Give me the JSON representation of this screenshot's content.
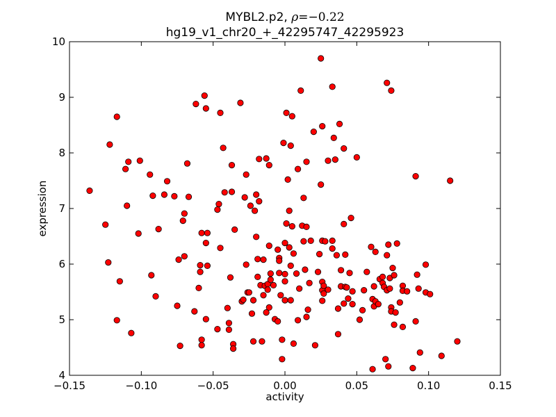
{
  "chart_data": {
    "type": "scatter",
    "title": "MYBL2.p2, ρ=−0.22",
    "title_line1_prefix": "MYBL2.p2, ",
    "title_line1_symbol": "ρ",
    "title_line1_equals": "=−0.22",
    "subtitle": "hg19_v1_chr20_+_42295747_42295923",
    "xlabel": "activity",
    "ylabel": "expression",
    "xlim": [
      -0.15,
      0.15
    ],
    "ylim": [
      4,
      10
    ],
    "xticks": [
      -0.15,
      -0.1,
      -0.05,
      0.0,
      0.05,
      0.1,
      0.15
    ],
    "xtick_labels": [
      "−0.15",
      "−0.10",
      "−0.05",
      "0.00",
      "0.05",
      "0.10",
      "0.15"
    ],
    "yticks": [
      4,
      5,
      6,
      7,
      8,
      9,
      10
    ],
    "ytick_labels": [
      "4",
      "5",
      "6",
      "7",
      "8",
      "9",
      "10"
    ],
    "grid": false,
    "marker_color": "#ff0000",
    "marker_edge_color": "#000000",
    "points": [
      [
        -0.136,
        7.32
      ],
      [
        -0.125,
        6.71
      ],
      [
        -0.123,
        6.03
      ],
      [
        -0.122,
        8.15
      ],
      [
        -0.117,
        8.65
      ],
      [
        -0.117,
        4.99
      ],
      [
        -0.115,
        5.69
      ],
      [
        -0.111,
        7.71
      ],
      [
        -0.11,
        7.05
      ],
      [
        -0.109,
        7.84
      ],
      [
        -0.107,
        4.76
      ],
      [
        -0.102,
        6.55
      ],
      [
        -0.101,
        7.86
      ],
      [
        -0.094,
        7.61
      ],
      [
        -0.093,
        5.8
      ],
      [
        -0.092,
        7.23
      ],
      [
        -0.09,
        5.42
      ],
      [
        -0.088,
        6.63
      ],
      [
        -0.084,
        7.25
      ],
      [
        -0.082,
        7.49
      ],
      [
        -0.077,
        7.22
      ],
      [
        -0.075,
        5.25
      ],
      [
        -0.074,
        6.08
      ],
      [
        -0.073,
        4.53
      ],
      [
        -0.071,
        6.78
      ],
      [
        -0.07,
        6.91
      ],
      [
        -0.07,
        6.14
      ],
      [
        -0.068,
        7.81
      ],
      [
        -0.067,
        7.21
      ],
      [
        -0.063,
        5.15
      ],
      [
        -0.062,
        8.88
      ],
      [
        -0.06,
        5.57
      ],
      [
        -0.059,
        5.98
      ],
      [
        -0.059,
        5.86
      ],
      [
        -0.058,
        6.56
      ],
      [
        -0.058,
        4.64
      ],
      [
        -0.058,
        4.54
      ],
      [
        -0.056,
        9.03
      ],
      [
        -0.055,
        8.8
      ],
      [
        -0.055,
        6.38
      ],
      [
        -0.055,
        5.01
      ],
      [
        -0.054,
        6.56
      ],
      [
        -0.054,
        5.97
      ],
      [
        -0.047,
        6.98
      ],
      [
        -0.047,
        4.83
      ],
      [
        -0.046,
        7.08
      ],
      [
        -0.045,
        8.72
      ],
      [
        -0.045,
        6.29
      ],
      [
        -0.043,
        8.09
      ],
      [
        -0.042,
        7.29
      ],
      [
        -0.04,
        5.21
      ],
      [
        -0.039,
        4.94
      ],
      [
        -0.039,
        4.82
      ],
      [
        -0.038,
        5.76
      ],
      [
        -0.037,
        7.3
      ],
      [
        -0.037,
        7.78
      ],
      [
        -0.036,
        4.56
      ],
      [
        -0.036,
        4.48
      ],
      [
        -0.035,
        6.62
      ],
      [
        -0.031,
        8.9
      ],
      [
        -0.03,
        5.33
      ],
      [
        -0.029,
        5.36
      ],
      [
        -0.028,
        7.2
      ],
      [
        -0.027,
        7.61
      ],
      [
        -0.027,
        5.99
      ],
      [
        -0.026,
        5.49
      ],
      [
        -0.025,
        5.49
      ],
      [
        -0.024,
        7.05
      ],
      [
        -0.023,
        5.11
      ],
      [
        -0.022,
        5.35
      ],
      [
        -0.022,
        4.61
      ],
      [
        -0.021,
        6.96
      ],
      [
        -0.02,
        7.25
      ],
      [
        -0.02,
        6.49
      ],
      [
        -0.019,
        5.77
      ],
      [
        -0.019,
        6.09
      ],
      [
        -0.018,
        7.13
      ],
      [
        -0.018,
        7.89
      ],
      [
        -0.017,
        5.62
      ],
      [
        -0.016,
        4.61
      ],
      [
        -0.015,
        6.08
      ],
      [
        -0.015,
        5.44
      ],
      [
        -0.014,
        5.61
      ],
      [
        -0.013,
        7.9
      ],
      [
        -0.013,
        5.13
      ],
      [
        -0.012,
        5.64
      ],
      [
        -0.012,
        5.54
      ],
      [
        -0.011,
        6.33
      ],
      [
        -0.011,
        5.22
      ],
      [
        -0.011,
        7.78
      ],
      [
        -0.01,
        5.83
      ],
      [
        -0.01,
        5.72
      ],
      [
        -0.008,
        5.62
      ],
      [
        -0.007,
        5.01
      ],
      [
        -0.005,
        6.26
      ],
      [
        -0.005,
        4.97
      ],
      [
        -0.004,
        6.11
      ],
      [
        -0.004,
        6.06
      ],
      [
        -0.004,
        5.84
      ],
      [
        -0.003,
        5.44
      ],
      [
        -0.002,
        4.29
      ],
      [
        -0.002,
        4.64
      ],
      [
        -0.001,
        8.18
      ],
      [
        0.0,
        6.38
      ],
      [
        0.0,
        5.82
      ],
      [
        0.0,
        5.69
      ],
      [
        0.0,
        5.35
      ],
      [
        0.001,
        8.72
      ],
      [
        0.001,
        6.73
      ],
      [
        0.002,
        7.52
      ],
      [
        0.003,
        6.96
      ],
      [
        0.003,
        6.3
      ],
      [
        0.004,
        8.13
      ],
      [
        0.004,
        5.97
      ],
      [
        0.004,
        5.35
      ],
      [
        0.005,
        8.66
      ],
      [
        0.005,
        6.68
      ],
      [
        0.006,
        6.19
      ],
      [
        0.006,
        4.57
      ],
      [
        0.008,
        5.83
      ],
      [
        0.009,
        7.71
      ],
      [
        0.009,
        4.99
      ],
      [
        0.01,
        5.56
      ],
      [
        0.011,
        9.12
      ],
      [
        0.012,
        6.69
      ],
      [
        0.013,
        7.19
      ],
      [
        0.013,
        6.41
      ],
      [
        0.014,
        5.9
      ],
      [
        0.015,
        7.84
      ],
      [
        0.015,
        6.67
      ],
      [
        0.015,
        5.05
      ],
      [
        0.016,
        5.18
      ],
      [
        0.017,
        5.66
      ],
      [
        0.018,
        6.42
      ],
      [
        0.02,
        8.38
      ],
      [
        0.021,
        4.54
      ],
      [
        0.023,
        5.86
      ],
      [
        0.024,
        6.18
      ],
      [
        0.025,
        9.7
      ],
      [
        0.025,
        7.43
      ],
      [
        0.026,
        8.48
      ],
      [
        0.026,
        6.42
      ],
      [
        0.026,
        5.68
      ],
      [
        0.026,
        5.53
      ],
      [
        0.026,
        5.34
      ],
      [
        0.027,
        5.47
      ],
      [
        0.027,
        5.61
      ],
      [
        0.028,
        6.41
      ],
      [
        0.03,
        7.86
      ],
      [
        0.03,
        5.54
      ],
      [
        0.033,
        9.19
      ],
      [
        0.033,
        6.42
      ],
      [
        0.033,
        6.28
      ],
      [
        0.034,
        8.27
      ],
      [
        0.035,
        7.88
      ],
      [
        0.036,
        6.16
      ],
      [
        0.037,
        5.2
      ],
      [
        0.037,
        4.74
      ],
      [
        0.038,
        8.52
      ],
      [
        0.039,
        5.89
      ],
      [
        0.039,
        5.6
      ],
      [
        0.041,
        8.08
      ],
      [
        0.041,
        6.72
      ],
      [
        0.041,
        5.29
      ],
      [
        0.042,
        6.17
      ],
      [
        0.042,
        5.59
      ],
      [
        0.043,
        5.58
      ],
      [
        0.044,
        5.38
      ],
      [
        0.045,
        5.84
      ],
      [
        0.046,
        6.83
      ],
      [
        0.047,
        5.51
      ],
      [
        0.047,
        5.28
      ],
      [
        0.05,
        7.92
      ],
      [
        0.052,
        5.0
      ],
      [
        0.054,
        5.17
      ],
      [
        0.055,
        5.53
      ],
      [
        0.057,
        5.86
      ],
      [
        0.06,
        6.31
      ],
      [
        0.061,
        4.11
      ],
      [
        0.061,
        5.37
      ],
      [
        0.062,
        5.6
      ],
      [
        0.062,
        5.24
      ],
      [
        0.063,
        6.22
      ],
      [
        0.063,
        5.33
      ],
      [
        0.065,
        5.28
      ],
      [
        0.066,
        5.73
      ],
      [
        0.068,
        5.66
      ],
      [
        0.068,
        5.77
      ],
      [
        0.069,
        5.59
      ],
      [
        0.07,
        4.29
      ],
      [
        0.071,
        9.26
      ],
      [
        0.071,
        6.16
      ],
      [
        0.071,
        5.53
      ],
      [
        0.072,
        6.35
      ],
      [
        0.072,
        4.16
      ],
      [
        0.073,
        5.75
      ],
      [
        0.073,
        5.56
      ],
      [
        0.074,
        9.12
      ],
      [
        0.074,
        5.22
      ],
      [
        0.074,
        5.15
      ],
      [
        0.075,
        5.93
      ],
      [
        0.076,
        4.91
      ],
      [
        0.076,
        5.8
      ],
      [
        0.077,
        5.13
      ],
      [
        0.078,
        6.37
      ],
      [
        0.08,
        5.31
      ],
      [
        0.082,
        5.61
      ],
      [
        0.082,
        5.52
      ],
      [
        0.082,
        4.87
      ],
      [
        0.085,
        5.51
      ],
      [
        0.089,
        4.13
      ],
      [
        0.091,
        7.58
      ],
      [
        0.091,
        4.97
      ],
      [
        0.092,
        5.81
      ],
      [
        0.093,
        5.56
      ],
      [
        0.094,
        4.41
      ],
      [
        0.098,
        5.99
      ],
      [
        0.098,
        5.49
      ],
      [
        0.101,
        5.46
      ],
      [
        0.109,
        4.35
      ],
      [
        0.115,
        7.5
      ],
      [
        0.12,
        4.61
      ]
    ]
  }
}
